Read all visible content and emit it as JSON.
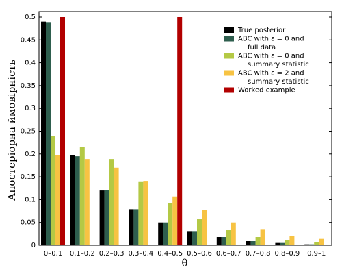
{
  "chart_data": {
    "type": "bar",
    "x_label": "θ",
    "y_label": "Апостеріорна ймовірність",
    "categories": [
      "0–0.1",
      "0.1–0.2",
      "0.2–0.3",
      "0.3–0.4",
      "0.4–0.5",
      "0.5–0.6",
      "0.6–0.7",
      "0.7–0.8",
      "0.8–0.9",
      "0.9–1"
    ],
    "series": [
      {
        "name": "True posterior",
        "color": "#000000",
        "values": [
          0.49,
          0.197,
          0.12,
          0.079,
          0.05,
          0.031,
          0.018,
          0.009,
          0.005,
          0.002
        ]
      },
      {
        "name": "ABC with ε = 0 and\nfull data",
        "color": "#2e5e4e",
        "values": [
          0.489,
          0.195,
          0.121,
          0.079,
          0.05,
          0.031,
          0.018,
          0.009,
          0.005,
          0.002
        ]
      },
      {
        "name": "ABC with ε = 0 and\nsummary statistic",
        "color": "#b4c945",
        "values": [
          0.239,
          0.215,
          0.189,
          0.14,
          0.093,
          0.057,
          0.033,
          0.018,
          0.011,
          0.006
        ]
      },
      {
        "name": "ABC with ε = 2 and\nsummary statistic",
        "color": "#f7c343",
        "values": [
          0.197,
          0.189,
          0.17,
          0.141,
          0.107,
          0.077,
          0.05,
          0.034,
          0.021,
          0.014
        ]
      },
      {
        "name": "Worked example",
        "color": "#b20000",
        "values": [
          0.5,
          0,
          0,
          0,
          0.5,
          0,
          0,
          0,
          0,
          0
        ]
      }
    ],
    "ylim": [
      0,
      0.512
    ],
    "yticks": [
      0,
      0.05,
      0.1,
      0.15,
      0.2,
      0.25,
      0.3,
      0.35,
      0.4,
      0.45,
      0.5
    ],
    "legend": "upper right"
  }
}
